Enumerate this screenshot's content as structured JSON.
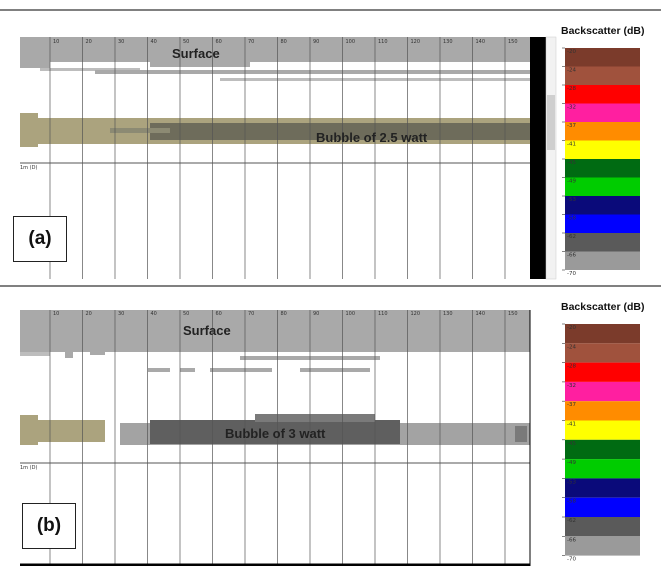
{
  "panels": [
    {
      "id": "a",
      "letter": "(a)",
      "surface_label": "Surface",
      "bubble_label": "Bubble of 2.5 watt",
      "depth_marker": "1m (D)",
      "ping_ticks": [
        "10",
        "20",
        "30",
        "40",
        "50",
        "60",
        "70",
        "80",
        "90",
        "100",
        "110",
        "120",
        "130",
        "140",
        "150"
      ],
      "scale_title": "Backscatter (dB)",
      "scale_ticks": [
        "-20",
        "-24",
        "-28",
        "-32",
        "-37",
        "-41",
        "-45",
        "-49",
        "-53",
        "-58",
        "-62",
        "-66",
        "-70"
      ]
    },
    {
      "id": "b",
      "letter": "(b)",
      "surface_label": "Surface",
      "bubble_label": "Bubble of 3 watt",
      "depth_marker": "1m (D)",
      "ping_ticks": [
        "10",
        "20",
        "30",
        "40",
        "50",
        "60",
        "70",
        "80",
        "90",
        "100",
        "110",
        "120",
        "130",
        "140",
        "150"
      ],
      "scale_title": "Backscatter (dB)",
      "scale_ticks": [
        "-20",
        "-24",
        "-28",
        "-32",
        "-37",
        "-41",
        "-45",
        "-49",
        "-53",
        "-58",
        "-62",
        "-66",
        "-70"
      ]
    }
  ],
  "colors": {
    "scale": [
      "#7b3b2b",
      "#a0523d",
      "#ff0000",
      "#ff1fa0",
      "#ff8c00",
      "#ffff00",
      "#006b12",
      "#00cc00",
      "#0a0a7a",
      "#0000ff",
      "#5a5a5a",
      "#9a9a9a"
    ],
    "surface_gray": "#a9a9a9",
    "bubble_khaki": "#aba37e",
    "bubble_dark": "#5f5f5f",
    "grid": "#555555"
  }
}
